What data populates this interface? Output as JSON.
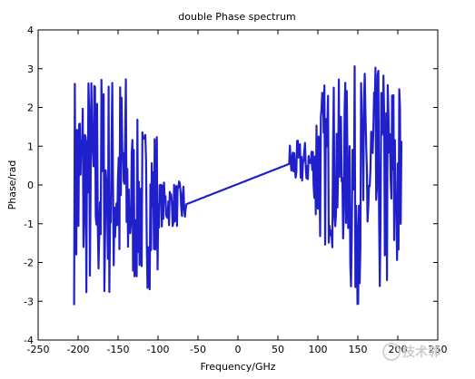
{
  "chart_data": {
    "type": "line",
    "title": "double Phase spectrum",
    "xlabel": "Frequency/GHz",
    "ylabel": "Phase/rad",
    "xlim": [
      -250,
      250
    ],
    "ylim": [
      -4,
      4
    ],
    "xticks": [
      -250,
      -200,
      -150,
      -100,
      -50,
      0,
      50,
      100,
      150,
      200,
      250
    ],
    "yticks": [
      -4,
      -3,
      -2,
      -1,
      0,
      1,
      2,
      3,
      4
    ],
    "grid": false,
    "legend": "none",
    "series_color": "#1f1fcc",
    "series": [
      {
        "style": "noisy wrapped phase (random in [-pi, pi]) for |f| > ~70 GHz, linear near center",
        "x_range": [
          -205,
          205
        ],
        "linear_segment": {
          "x": [
            -65,
            65
          ],
          "y": [
            -0.5,
            0.55
          ]
        },
        "noise_transition": [
          {
            "x": [
              -205,
              -140
            ],
            "amplitude": 3.1
          },
          {
            "x": [
              -140,
              -100
            ],
            "amplitude": 2.2
          },
          {
            "x": [
              -100,
              -65
            ],
            "amplitude": 0.6
          },
          {
            "x": [
              65,
              95
            ],
            "amplitude": 0.6
          },
          {
            "x": [
              95,
              140
            ],
            "amplitude": 2.2
          },
          {
            "x": [
              140,
              205
            ],
            "amplitude": 3.1
          }
        ]
      }
    ]
  },
  "watermark": "技术邻"
}
